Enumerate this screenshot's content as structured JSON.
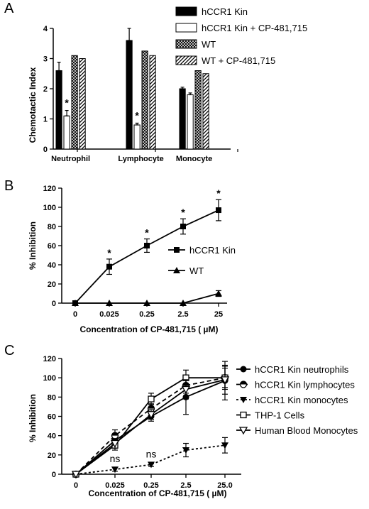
{
  "chart_data": [
    {
      "panel": "A",
      "type": "bar",
      "ylabel": "Chemotactic Index",
      "ylim": [
        0,
        4
      ],
      "yticks": [
        "0",
        "1",
        "2",
        "3",
        "4"
      ],
      "categories": [
        "Neutrophil",
        "Lymphocyte",
        "Monocyte"
      ],
      "series": [
        {
          "name": "hCCR1 Kin",
          "fill": "solid",
          "values": [
            2.6,
            3.6,
            2.0
          ],
          "errors": [
            0.28,
            0.4,
            0.05
          ]
        },
        {
          "name": "hCCR1 Kin + CP-481,715",
          "fill": "white",
          "values": [
            1.1,
            0.8,
            1.8
          ],
          "errors": [
            0.18,
            0.06,
            0.06
          ]
        },
        {
          "name": "WT",
          "fill": "crosshatch",
          "values": [
            3.1,
            3.25,
            2.6
          ],
          "errors": [
            0,
            0,
            0
          ]
        },
        {
          "name": "WT + CP-481,715",
          "fill": "diagonal",
          "values": [
            3.0,
            3.1,
            2.5
          ],
          "errors": [
            0,
            0,
            0
          ]
        }
      ],
      "annotations": [
        {
          "category": "Neutrophil",
          "series": 1,
          "text": "*"
        },
        {
          "category": "Lymphocyte",
          "series": 1,
          "text": "*"
        }
      ],
      "legend_position": "top-right"
    },
    {
      "panel": "B",
      "type": "line",
      "xlabel": "Concentration of CP-481,715 ( µM)",
      "ylabel": "% Inhibition",
      "ylim": [
        0,
        120
      ],
      "yticks": [
        "0",
        "20",
        "40",
        "60",
        "80",
        "100",
        "120"
      ],
      "categories": [
        "0",
        "0.025",
        "0.25",
        "2.5",
        "25"
      ],
      "series": [
        {
          "name": "hCCR1 Kin",
          "marker": "square",
          "dash": "solid",
          "values": [
            0,
            38,
            60,
            80,
            97
          ],
          "errors": [
            0,
            8,
            7,
            8,
            11
          ]
        },
        {
          "name": "WT",
          "marker": "triangle-up",
          "dash": "solid",
          "values": [
            0,
            0,
            0,
            0,
            10
          ],
          "errors": [
            0,
            0,
            0,
            0,
            3
          ]
        }
      ],
      "annotations": [
        {
          "x": "0.025",
          "text": "*"
        },
        {
          "x": "0.25",
          "text": "*"
        },
        {
          "x": "2.5",
          "text": "*"
        },
        {
          "x": "25",
          "text": "*"
        }
      ],
      "legend_position": "right"
    },
    {
      "panel": "C",
      "type": "line",
      "xlabel": "Concentration of CP-481,715 ( µM)",
      "ylabel": "% Inhibition",
      "ylim": [
        0,
        120
      ],
      "yticks": [
        "0",
        "20",
        "40",
        "60",
        "80",
        "100",
        "120"
      ],
      "categories": [
        "0",
        "0.025",
        "0.25",
        "2.5",
        "25.0"
      ],
      "series": [
        {
          "name": "hCCR1 Kin neutrophils",
          "marker": "circle-filled",
          "dash": "solid",
          "values": [
            0,
            35,
            60,
            80,
            97
          ],
          "errors": [
            0,
            5,
            5,
            18,
            20
          ]
        },
        {
          "name": "hCCR1 Kin lymphocytes",
          "marker": "circle-half",
          "dash": "dashed",
          "values": [
            0,
            40,
            68,
            92,
            100
          ],
          "errors": [
            0,
            6,
            5,
            8,
            10
          ]
        },
        {
          "name": "hCCR1 Kin monocytes",
          "marker": "triangle-down-filled",
          "dash": "dotted",
          "values": [
            0,
            5,
            10,
            25,
            30
          ],
          "errors": [
            0,
            2,
            2,
            7,
            8
          ]
        },
        {
          "name": "THP-1 Cells",
          "marker": "square-open",
          "dash": "solid",
          "values": [
            0,
            30,
            78,
            100,
            100
          ],
          "errors": [
            0,
            5,
            6,
            8,
            12
          ]
        },
        {
          "name": "Human  Blood Monocytes",
          "marker": "triangle-down-open",
          "dash": "solid",
          "values": [
            0,
            32,
            62,
            88,
            98
          ],
          "errors": [
            0,
            5,
            5,
            10,
            15
          ]
        }
      ],
      "annotations": [
        {
          "x": "0.025",
          "text": "ns"
        },
        {
          "x": "0.25",
          "text": "ns"
        }
      ],
      "legend_position": "right"
    }
  ]
}
